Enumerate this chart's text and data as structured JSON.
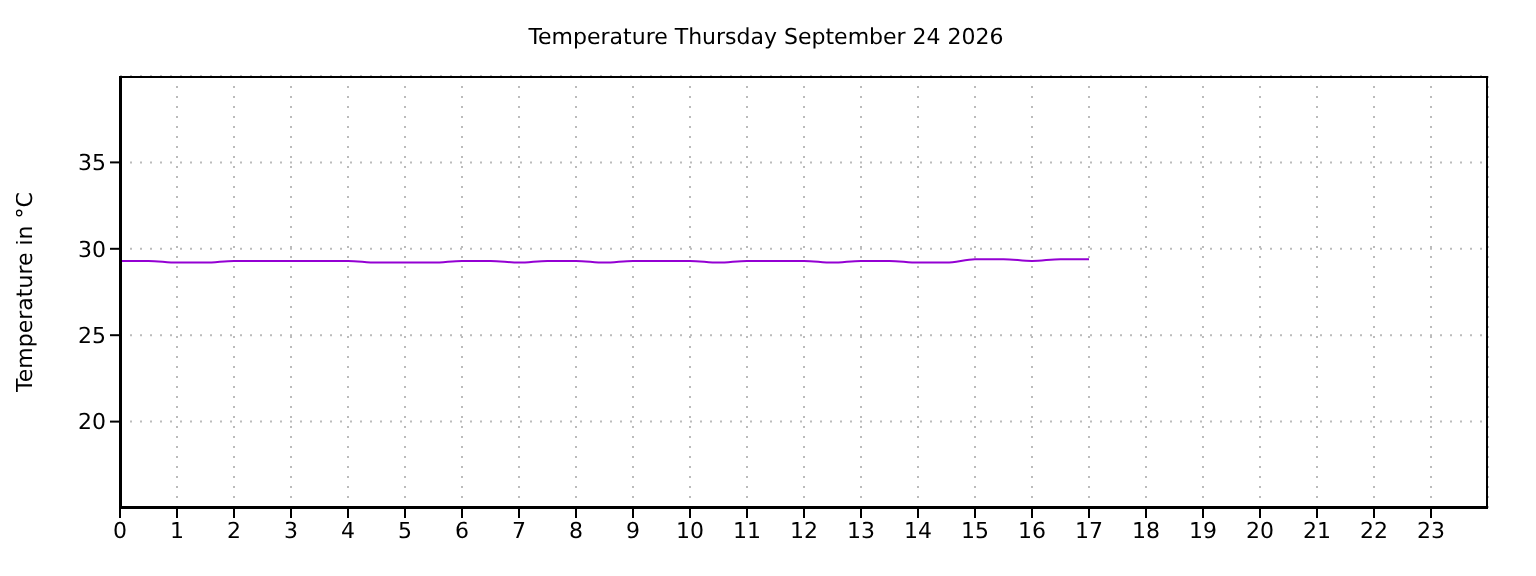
{
  "chart_data": {
    "type": "line",
    "title": "Temperature Thursday September 24 2026",
    "ylabel": "Temperature in °C",
    "x": [
      0,
      0.5,
      1,
      1.5,
      2,
      2.5,
      3,
      3.5,
      4,
      4.5,
      5,
      5.5,
      6,
      6.5,
      7,
      7.5,
      8,
      8.5,
      9,
      9.5,
      10,
      10.5,
      11,
      11.5,
      12,
      12.5,
      13,
      13.5,
      14,
      14.5,
      15,
      15.5,
      16,
      16.5,
      17
    ],
    "series": [
      {
        "color": "#9400d3",
        "values": [
          29.3,
          29.3,
          29.2,
          29.2,
          29.3,
          29.3,
          29.3,
          29.3,
          29.3,
          29.2,
          29.2,
          29.2,
          29.3,
          29.3,
          29.2,
          29.3,
          29.3,
          29.2,
          29.3,
          29.3,
          29.3,
          29.2,
          29.3,
          29.3,
          29.3,
          29.2,
          29.3,
          29.3,
          29.2,
          29.2,
          29.4,
          29.4,
          29.3,
          29.4,
          29.4
        ]
      }
    ],
    "xlim": [
      0,
      24
    ],
    "xticks": [
      0,
      1,
      2,
      3,
      4,
      5,
      6,
      7,
      8,
      9,
      10,
      11,
      12,
      13,
      14,
      15,
      16,
      17,
      18,
      19,
      20,
      21,
      22,
      23
    ],
    "ylim": [
      15,
      40
    ],
    "yticks": [
      20,
      25,
      30,
      35
    ],
    "grid": true,
    "legend": false,
    "marker": "none",
    "line_style": "solid"
  }
}
